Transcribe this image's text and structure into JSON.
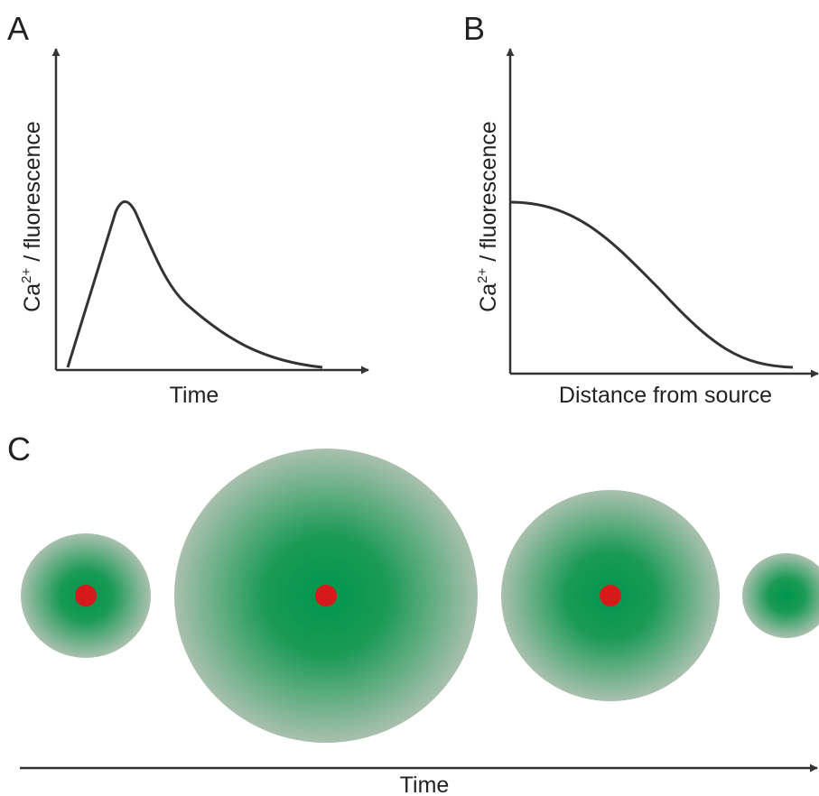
{
  "panels": [
    {
      "label": "A",
      "y_label": {
        "main": "Ca",
        "sup": "2+",
        "rest": " / fluorescence"
      },
      "x_label": "Time"
    },
    {
      "label": "B",
      "y_label": {
        "main": "Ca",
        "sup": "2+",
        "rest": " / fluorescence"
      },
      "x_label": "Distance from source"
    },
    {
      "label": "C",
      "x_label": "Time"
    }
  ]
}
